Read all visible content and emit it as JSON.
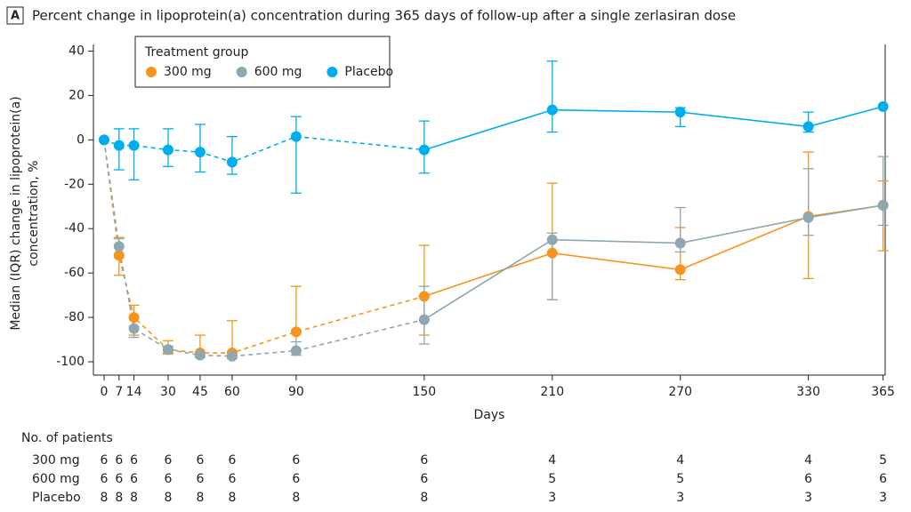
{
  "chart_data": {
    "type": "line",
    "panel_label": "A",
    "title": "Percent change in lipoprotein(a) concentration during 365 days of follow-up after a single zerlasiran dose",
    "x_label": "Days",
    "y_label": [
      "Median (IQR) change in lipoprotein(a)",
      "concentration, %"
    ],
    "legend_title": "Treatment group",
    "legend": "upper left",
    "x": [
      0,
      7,
      14,
      30,
      45,
      60,
      90,
      150,
      210,
      270,
      330,
      365
    ],
    "xlim": [
      -5,
      366
    ],
    "xticks": [
      0,
      7,
      14,
      30,
      45,
      60,
      90,
      150,
      210,
      270,
      330,
      365
    ],
    "ylim": [
      -106,
      43
    ],
    "yticks": [
      40,
      20,
      0,
      -20,
      -40,
      -60,
      -80,
      -100
    ],
    "dashed_through_x": 150,
    "series": [
      {
        "name": "300 mg",
        "color": "#f7941d",
        "values": [
          0,
          -52,
          -80,
          -94.5,
          -96,
          -96,
          -86.5,
          -70.5,
          -51,
          -58.5,
          -34.5,
          -29.5
        ],
        "errors": [
          null,
          [
            -61,
            -44
          ],
          [
            -88,
            -74.5
          ],
          [
            -96.5,
            -90.5
          ],
          [
            -97,
            -88
          ],
          [
            -97,
            -81.5
          ],
          [
            -97,
            -66
          ],
          [
            -88,
            -47.5
          ],
          [
            -72,
            -19.5
          ],
          [
            -63,
            -39.5
          ],
          [
            -62.5,
            -5.5
          ],
          [
            -50,
            -18.5
          ]
        ]
      },
      {
        "name": "600 mg",
        "color": "#8ea7b0",
        "values": [
          0,
          -48,
          -85,
          -94.5,
          -97,
          -97.5,
          -95,
          -81,
          -45,
          -46.5,
          -35,
          -29.5
        ],
        "errors": [
          null,
          [
            -53,
            -44.5
          ],
          [
            -89,
            -84
          ],
          [
            -96,
            -93
          ],
          [
            -98,
            -96
          ],
          [
            -98.5,
            -96
          ],
          [
            -97,
            -91
          ],
          [
            -92,
            -66
          ],
          [
            -72,
            -42
          ],
          [
            -50.5,
            -30.5
          ],
          [
            -43,
            -13
          ],
          [
            -38.5,
            -7.5
          ]
        ]
      },
      {
        "name": "Placebo",
        "color": "#00aeef",
        "values": [
          0,
          -2.5,
          -2.5,
          -4.5,
          -5.5,
          -10,
          1.5,
          -4.5,
          13.5,
          12.5,
          6,
          15
        ],
        "errors": [
          null,
          [
            -13.5,
            5
          ],
          [
            -18,
            5
          ],
          [
            -12,
            5
          ],
          [
            -14.5,
            7
          ],
          [
            -15.5,
            1.5
          ],
          [
            -24,
            10.5
          ],
          [
            -15,
            8.5
          ],
          [
            3.5,
            35.5
          ],
          [
            6,
            14.5
          ],
          [
            3.5,
            12.5
          ],
          null
        ]
      }
    ],
    "patients": {
      "title": "No. of patients",
      "rows": [
        {
          "name": "300 mg",
          "counts": [
            6,
            6,
            6,
            6,
            6,
            6,
            6,
            6,
            4,
            4,
            4,
            5
          ]
        },
        {
          "name": "600 mg",
          "counts": [
            6,
            6,
            6,
            6,
            6,
            6,
            6,
            6,
            5,
            5,
            6,
            6
          ]
        },
        {
          "name": "Placebo",
          "counts": [
            8,
            8,
            8,
            8,
            8,
            8,
            8,
            8,
            3,
            3,
            3,
            3
          ]
        }
      ]
    }
  }
}
